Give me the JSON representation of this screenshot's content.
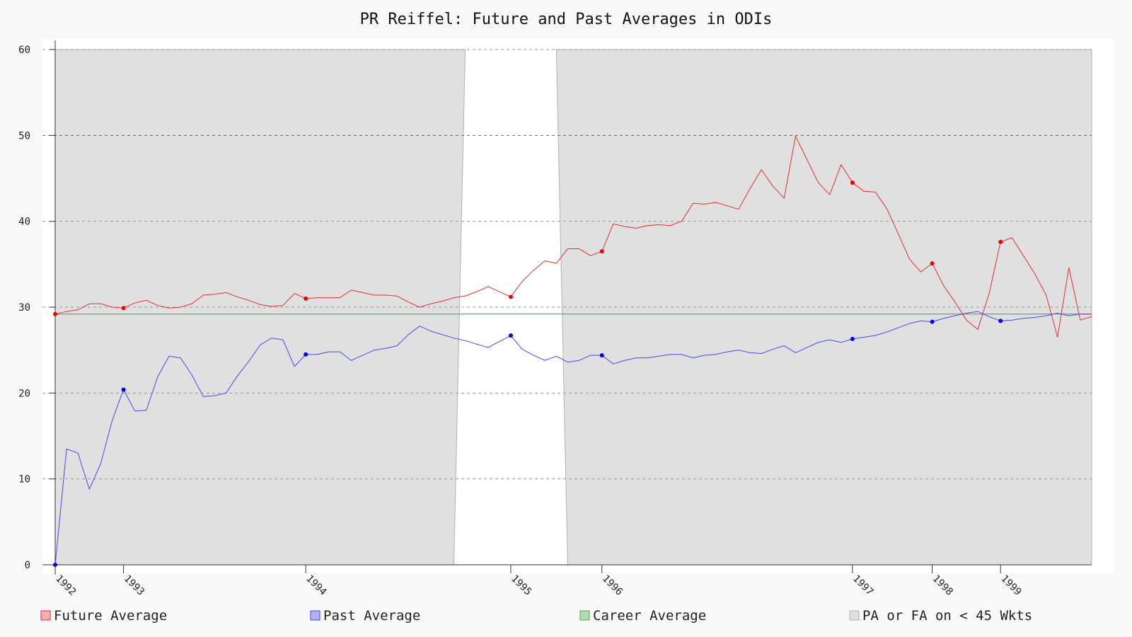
{
  "chart_data": {
    "type": "line",
    "title": "PR Reiffel: Future and Past Averages in ODIs",
    "xlabel": "",
    "ylabel": "",
    "ylim": [
      0,
      60
    ],
    "yticks": [
      0,
      10,
      20,
      30,
      40,
      50,
      60
    ],
    "grid": true,
    "legend_position": "bottom",
    "n_points": 92,
    "year_ticks": [
      {
        "label": "1992",
        "index": 0
      },
      {
        "label": "1993",
        "index": 6
      },
      {
        "label": "1994",
        "index": 22
      },
      {
        "label": "1995",
        "index": 40
      },
      {
        "label": "1996",
        "index": 48
      },
      {
        "label": "1997",
        "index": 70
      },
      {
        "label": "1998",
        "index": 77
      },
      {
        "label": "1999",
        "index": 83
      }
    ],
    "series": [
      {
        "name": "Future Average",
        "color": "#e03030",
        "marker_color": "#ee0000",
        "values": [
          29.2,
          29.5,
          29.7,
          30.4,
          30.4,
          30.0,
          29.9,
          30.5,
          30.8,
          30.2,
          29.9,
          30.0,
          30.4,
          31.4,
          31.5,
          31.7,
          31.2,
          30.8,
          30.3,
          30.1,
          30.2,
          31.6,
          31.0,
          31.1,
          31.1,
          31.1,
          32.0,
          31.7,
          31.4,
          31.4,
          31.3,
          30.6,
          30.0,
          30.4,
          30.7,
          31.1,
          31.3,
          31.8,
          32.4,
          31.8,
          31.2,
          33.0,
          34.3,
          35.4,
          35.1,
          36.8,
          36.8,
          36.0,
          36.5,
          39.7,
          39.4,
          39.2,
          39.5,
          39.6,
          39.5,
          40.0,
          42.1,
          42.0,
          42.2,
          41.8,
          41.4,
          43.8,
          46.0,
          44.1,
          42.7,
          49.9,
          47.2,
          44.5,
          43.1,
          46.6,
          44.5,
          43.5,
          43.4,
          41.5,
          38.6,
          35.6,
          34.1,
          35.1,
          32.5,
          30.6,
          28.5,
          27.4,
          31.6,
          37.6,
          38.1,
          36.0,
          33.9,
          31.4,
          26.5,
          34.6,
          28.5,
          28.9
        ],
        "marker_indices": [
          0,
          6,
          22,
          40,
          48,
          70,
          77,
          83
        ]
      },
      {
        "name": "Past Average",
        "color": "#4848ee",
        "marker_color": "#0000ee",
        "values": [
          0.0,
          13.5,
          13.0,
          8.8,
          11.8,
          16.8,
          20.4,
          17.9,
          18.0,
          21.9,
          24.3,
          24.1,
          22.1,
          19.6,
          19.7,
          20.0,
          22.0,
          23.7,
          25.6,
          26.4,
          26.2,
          23.1,
          24.5,
          24.5,
          24.8,
          24.8,
          23.8,
          24.4,
          25.0,
          25.2,
          25.5,
          26.8,
          27.8,
          27.2,
          26.8,
          26.4,
          26.1,
          25.7,
          25.3,
          26.0,
          26.7,
          25.1,
          24.4,
          23.8,
          24.3,
          23.6,
          23.8,
          24.4,
          24.4,
          23.4,
          23.8,
          24.1,
          24.1,
          24.3,
          24.5,
          24.5,
          24.1,
          24.4,
          24.5,
          24.8,
          25.0,
          24.7,
          24.6,
          25.1,
          25.5,
          24.7,
          25.3,
          25.9,
          26.2,
          25.9,
          26.3,
          26.5,
          26.7,
          27.1,
          27.6,
          28.1,
          28.4,
          28.3,
          28.7,
          29.0,
          29.3,
          29.5,
          28.9,
          28.4,
          28.5,
          28.7,
          28.8,
          29.0,
          29.3,
          29.0,
          29.2,
          29.2
        ],
        "marker_indices": [
          0,
          6,
          22,
          40,
          48,
          70,
          77,
          83
        ]
      },
      {
        "name": "Career Average",
        "color": "#60a060",
        "value": 29.2
      },
      {
        "name": "PA or FA on < 45 Wkts",
        "color": "#d8d8d8"
      }
    ],
    "clear_region_top_indices": [
      36,
      44
    ],
    "clear_region_bottom_indices": [
      35,
      45
    ]
  }
}
